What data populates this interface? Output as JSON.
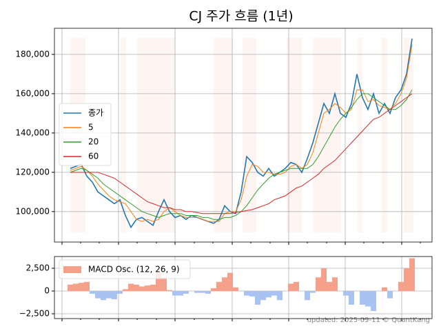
{
  "chart_data": [
    {
      "type": "line",
      "title": "CJ 주가 흐름 (1년)",
      "legend": "center left",
      "grid": true,
      "ylim": [
        84500,
        193300
      ],
      "yticks": [
        {
          "value": 100000,
          "label": "100,000"
        },
        {
          "value": 120000,
          "label": "120,000"
        },
        {
          "value": 140000,
          "label": "140,000"
        },
        {
          "value": 160000,
          "label": "160,000"
        },
        {
          "value": 180000,
          "label": "180,000"
        }
      ],
      "series": [
        {
          "name": "종가",
          "color": "#1f77b4",
          "values": [
            122000,
            123000,
            124000,
            118000,
            115000,
            110000,
            108000,
            106000,
            104000,
            106000,
            98000,
            92000,
            96000,
            97000,
            95000,
            93000,
            100000,
            106000,
            100000,
            97000,
            98000,
            96000,
            98000,
            97000,
            96000,
            95000,
            94000,
            96000,
            103000,
            100000,
            99000,
            110000,
            128000,
            125000,
            120000,
            118000,
            122000,
            118000,
            120000,
            122000,
            125000,
            124000,
            120000,
            127000,
            135000,
            145000,
            155000,
            150000,
            160000,
            150000,
            148000,
            155000,
            170000,
            158000,
            152000,
            160000,
            150000,
            155000,
            150000,
            158000,
            162000,
            170000,
            188000
          ]
        },
        {
          "name": "5",
          "color": "#ff7f0e",
          "values": [
            121000,
            122000,
            123000,
            121000,
            118000,
            114000,
            111000,
            108000,
            106000,
            105000,
            104000,
            100000,
            96000,
            95000,
            96000,
            95000,
            96000,
            100000,
            102000,
            100000,
            98000,
            97000,
            97000,
            97000,
            96000,
            95000,
            95000,
            95000,
            99000,
            100000,
            100000,
            106000,
            118000,
            124000,
            123000,
            120000,
            120000,
            119000,
            119000,
            120000,
            123000,
            124000,
            122000,
            124000,
            130000,
            140000,
            150000,
            152000,
            155000,
            153000,
            150000,
            152000,
            162000,
            162000,
            156000,
            157000,
            154000,
            153000,
            152000,
            155000,
            160000,
            168000,
            185000
          ]
        },
        {
          "name": "20",
          "color": "#2ca02c",
          "values": [
            120000,
            121000,
            122000,
            121000,
            119000,
            117000,
            114000,
            112000,
            110000,
            108000,
            106000,
            104000,
            102000,
            100000,
            99000,
            98000,
            97000,
            98000,
            99000,
            99000,
            99000,
            98000,
            98000,
            98000,
            97000,
            97000,
            96000,
            96000,
            97000,
            97000,
            98000,
            100000,
            103000,
            107000,
            111000,
            114000,
            117000,
            119000,
            120000,
            121000,
            122000,
            122000,
            122000,
            122000,
            124000,
            128000,
            133000,
            138000,
            143000,
            147000,
            150000,
            153000,
            157000,
            160000,
            160000,
            158000,
            156000,
            154000,
            152000,
            152000,
            154000,
            157000,
            162000
          ]
        },
        {
          "name": "60",
          "color": "#d62728",
          "values": [
            120000,
            120000,
            120000,
            120000,
            120000,
            120000,
            119000,
            118000,
            117000,
            115000,
            113000,
            111000,
            109000,
            107000,
            105000,
            104000,
            103000,
            102000,
            102000,
            101000,
            101000,
            100000,
            100000,
            99500,
            99000,
            99000,
            99000,
            99000,
            99000,
            99000,
            99500,
            100000,
            100500,
            101000,
            102000,
            103000,
            104000,
            106000,
            107000,
            108000,
            110000,
            112000,
            113000,
            115000,
            117000,
            119000,
            122000,
            124000,
            126000,
            129000,
            132000,
            135000,
            138000,
            141000,
            144000,
            147000,
            148000,
            150000,
            152000,
            154000,
            156000,
            158000,
            160000
          ]
        }
      ]
    },
    {
      "type": "bar",
      "legend": "upper left",
      "grid": true,
      "ylim": [
        -3030,
        3790
      ],
      "yticks": [
        {
          "value": -2500,
          "label": "−2,500"
        },
        0,
        {
          "value": 2500,
          "label": "2,500"
        }
      ],
      "series": [
        {
          "name": "MACD Osc. (12, 26, 9)",
          "color": "#f4a08a",
          "negative_color": "#a8c2f2",
          "values": [
            700,
            800,
            900,
            1000,
            -300,
            -800,
            -1000,
            -800,
            -900,
            -300,
            200,
            800,
            700,
            500,
            600,
            700,
            2000,
            1500,
            100,
            -500,
            -500,
            -300,
            0,
            -200,
            -200,
            -300,
            300,
            1000,
            1500,
            2000,
            400,
            0,
            -500,
            -600,
            -1500,
            -1000,
            -700,
            -500,
            -1000,
            0,
            800,
            1000,
            0,
            -1000,
            -200,
            1500,
            2500,
            1000,
            1500,
            0,
            -500,
            -1500,
            0,
            -1500,
            -1700,
            -2200,
            0,
            400,
            -800,
            0,
            1000,
            2500,
            3600
          ]
        }
      ]
    }
  ],
  "footer": "updated: 2025-09-11 © QuantKang"
}
